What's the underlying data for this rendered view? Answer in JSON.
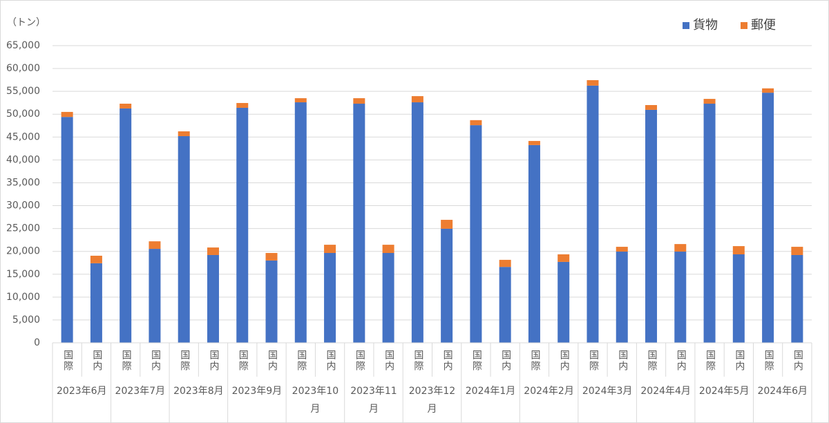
{
  "chart_data": {
    "type": "bar",
    "stacked": true,
    "y_label": "（トン）",
    "groups": [
      "2023年6月",
      "2023年7月",
      "2023年8月",
      "2023年9月",
      "2023年10月",
      "2023年11月",
      "2023年12月",
      "2024年1月",
      "2024年2月",
      "2024年3月",
      "2024年4月",
      "2024年5月",
      "2024年6月"
    ],
    "categories": [
      "国際",
      "国内",
      "国際",
      "国内",
      "国際",
      "国内",
      "国際",
      "国内",
      "国際",
      "国内",
      "国際",
      "国内",
      "国際",
      "国内",
      "国際",
      "国内",
      "国際",
      "国内",
      "国際",
      "国内",
      "国際",
      "国内",
      "国際",
      "国内",
      "国際",
      "国内"
    ],
    "series": [
      {
        "name": "貨物",
        "color": "#4472c4",
        "values": [
          49400,
          17400,
          51250,
          20550,
          45200,
          19200,
          51400,
          18000,
          52600,
          19650,
          52300,
          19650,
          52600,
          24950,
          47600,
          16600,
          43250,
          17700,
          56250,
          19950,
          50950,
          19950,
          52300,
          19350,
          54700,
          19200
        ]
      },
      {
        "name": "郵便",
        "color": "#ed7d31",
        "values": [
          1100,
          1650,
          1050,
          1650,
          1050,
          1650,
          1050,
          1650,
          900,
          1800,
          1200,
          1800,
          1350,
          1950,
          1100,
          1550,
          900,
          1650,
          1200,
          1050,
          1050,
          1650,
          1050,
          1800,
          950,
          1800
        ]
      }
    ],
    "ylim": [
      0,
      65000
    ],
    "yticks": [
      0,
      {
        "value": 5000,
        "label": "5,000"
      },
      {
        "value": 10000,
        "label": "10,000"
      },
      {
        "value": 15000,
        "label": "15,000"
      },
      {
        "value": 20000,
        "label": "20,000"
      },
      {
        "value": 25000,
        "label": "25,000"
      },
      {
        "value": 30000,
        "label": "30,000"
      },
      {
        "value": 35000,
        "label": "35,000"
      },
      {
        "value": 40000,
        "label": "40,000"
      },
      {
        "value": 45000,
        "label": "45,000"
      },
      {
        "value": 50000,
        "label": "50,000"
      },
      {
        "value": 55000,
        "label": "55,000"
      },
      {
        "value": 60000,
        "label": "60,000"
      },
      {
        "value": 65000,
        "label": "65,000"
      }
    ],
    "grid": true,
    "legend": "top-right"
  }
}
